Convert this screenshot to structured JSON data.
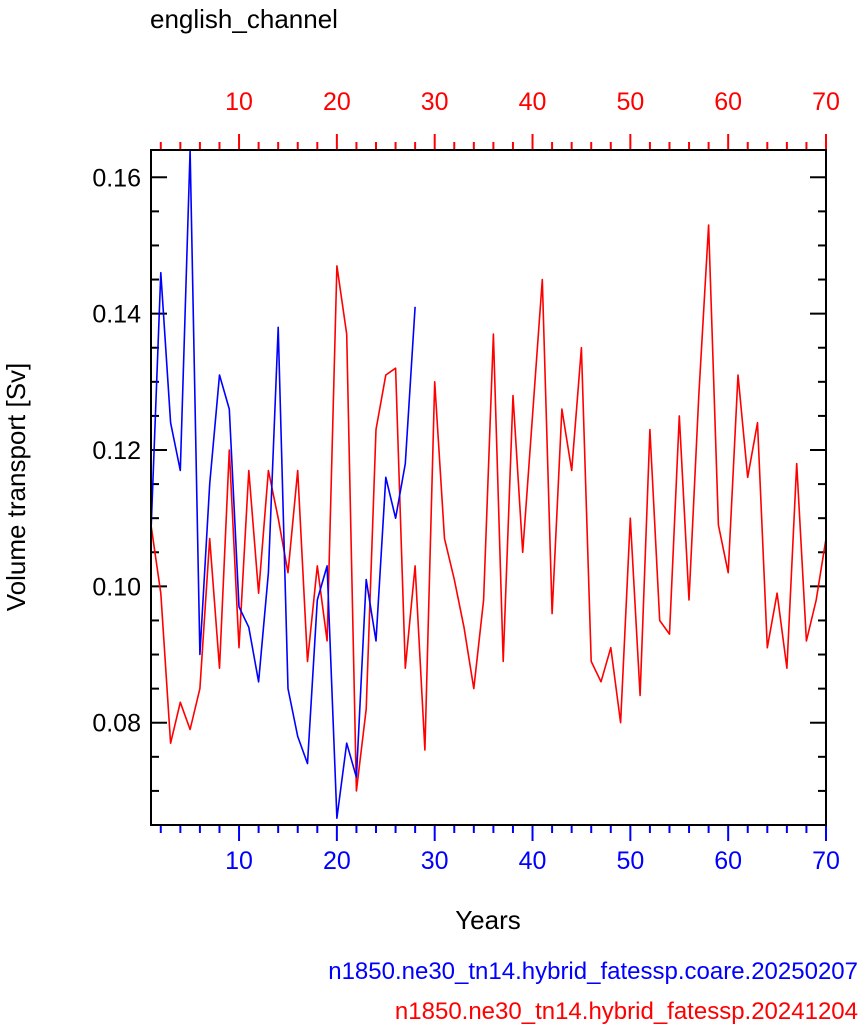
{
  "chart_data": {
    "type": "line",
    "title": "english_channel",
    "xlabel": "Years",
    "ylabel": "Volume transport [Sv]",
    "grid": false,
    "ylim": [
      0.065,
      0.164
    ],
    "yticks": [
      0.08,
      0.1,
      0.12,
      0.14,
      0.16
    ],
    "ytick_labels": [
      "0.08",
      "0.10",
      "0.12",
      "0.14",
      "0.16"
    ],
    "x_bottom": {
      "color": "#0000ff",
      "xlim": [
        1,
        70
      ],
      "ticks": [
        10,
        20,
        30,
        40,
        50,
        60,
        70
      ],
      "tick_labels": [
        "10",
        "20",
        "30",
        "40",
        "50",
        "60",
        "70"
      ]
    },
    "x_top": {
      "color": "#ff0000",
      "xlim": [
        1,
        70
      ],
      "ticks": [
        10,
        20,
        30,
        40,
        50,
        60,
        70
      ],
      "tick_labels": [
        "10",
        "20",
        "30",
        "40",
        "50",
        "60",
        "70"
      ]
    },
    "series": [
      {
        "name": "n1850.ne30_tn14.hybrid_fatessp.coare.20250207",
        "color": "#0000ff",
        "axis": "bottom",
        "x": [
          1,
          2,
          3,
          4,
          5,
          6,
          7,
          8,
          9,
          10,
          11,
          12,
          13,
          14,
          15,
          16,
          17,
          18,
          19,
          20,
          21,
          22,
          23,
          24,
          25,
          26,
          27,
          28
        ],
        "y": [
          0.108,
          0.146,
          0.124,
          0.117,
          0.164,
          0.09,
          0.115,
          0.131,
          0.126,
          0.097,
          0.094,
          0.086,
          0.102,
          0.138,
          0.085,
          0.078,
          0.074,
          0.098,
          0.103,
          0.066,
          0.077,
          0.072,
          0.101,
          0.092,
          0.116,
          0.11,
          0.118,
          0.141
        ]
      },
      {
        "name": "n1850.ne30_tn14.hybrid_fatessp.20241204",
        "color": "#ff0000",
        "axis": "top",
        "x": [
          1,
          2,
          3,
          4,
          5,
          6,
          7,
          8,
          9,
          10,
          11,
          12,
          13,
          14,
          15,
          16,
          17,
          18,
          19,
          20,
          21,
          22,
          23,
          24,
          25,
          26,
          27,
          28,
          29,
          30,
          31,
          32,
          33,
          34,
          35,
          36,
          37,
          38,
          39,
          40,
          41,
          42,
          43,
          44,
          45,
          46,
          47,
          48,
          49,
          50,
          51,
          52,
          53,
          54,
          55,
          56,
          57,
          58,
          59,
          60,
          61,
          62,
          63,
          64,
          65,
          66,
          67,
          68,
          69,
          70
        ],
        "y": [
          0.109,
          0.099,
          0.077,
          0.083,
          0.079,
          0.085,
          0.107,
          0.088,
          0.12,
          0.091,
          0.117,
          0.099,
          0.117,
          0.11,
          0.102,
          0.117,
          0.089,
          0.103,
          0.092,
          0.147,
          0.137,
          0.07,
          0.082,
          0.123,
          0.131,
          0.132,
          0.088,
          0.103,
          0.076,
          0.13,
          0.107,
          0.101,
          0.094,
          0.085,
          0.098,
          0.137,
          0.089,
          0.128,
          0.105,
          0.125,
          0.145,
          0.096,
          0.126,
          0.117,
          0.135,
          0.089,
          0.086,
          0.091,
          0.08,
          0.11,
          0.084,
          0.123,
          0.095,
          0.093,
          0.125,
          0.098,
          0.128,
          0.153,
          0.109,
          0.102,
          0.131,
          0.116,
          0.124,
          0.091,
          0.099,
          0.088,
          0.118,
          0.092,
          0.098,
          0.107
        ]
      }
    ]
  }
}
